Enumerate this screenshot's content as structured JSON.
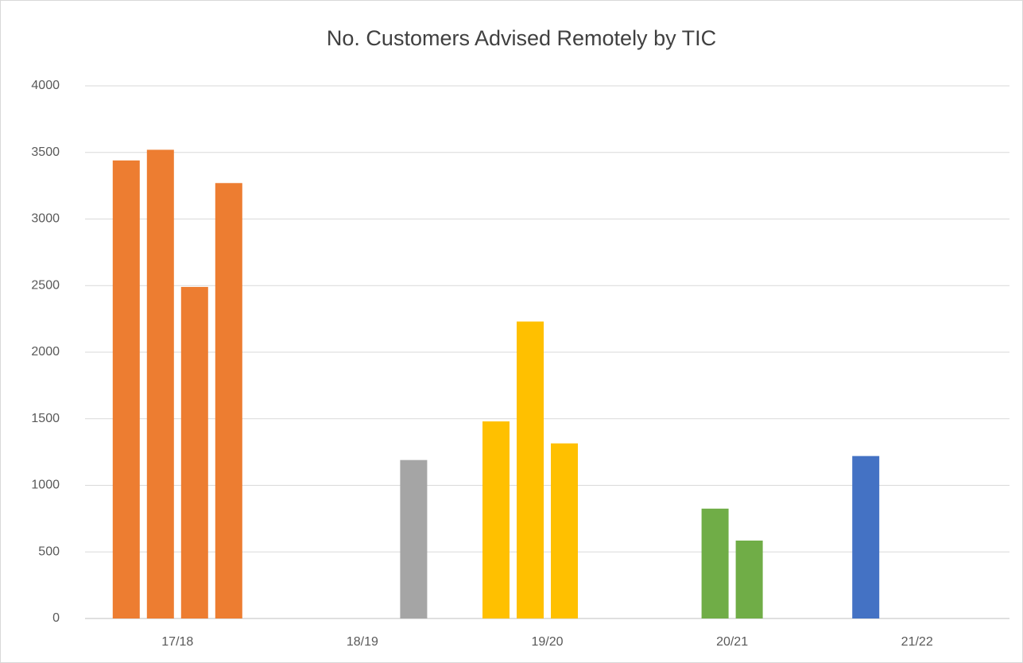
{
  "chart_data": {
    "type": "bar",
    "title": "No. Customers Advised Remotely by TIC",
    "categories": [
      "17/18",
      "18/19",
      "19/20",
      "20/21",
      "21/22"
    ],
    "category_colors": [
      "#ed7d31",
      "#a5a5a5",
      "#ffc000",
      "#70ad47",
      "#4472c4"
    ],
    "series": [
      {
        "values": [
          3440,
          null,
          1480,
          null,
          1220
        ]
      },
      {
        "values": [
          3520,
          null,
          2230,
          825,
          null
        ]
      },
      {
        "values": [
          2490,
          null,
          1315,
          585,
          null
        ]
      },
      {
        "values": [
          3270,
          1190,
          null,
          null,
          null
        ]
      }
    ],
    "ylim": [
      0,
      4000
    ],
    "yticks": [
      0,
      500,
      1000,
      1500,
      2000,
      2500,
      3000,
      3500,
      4000
    ],
    "grid": true
  }
}
